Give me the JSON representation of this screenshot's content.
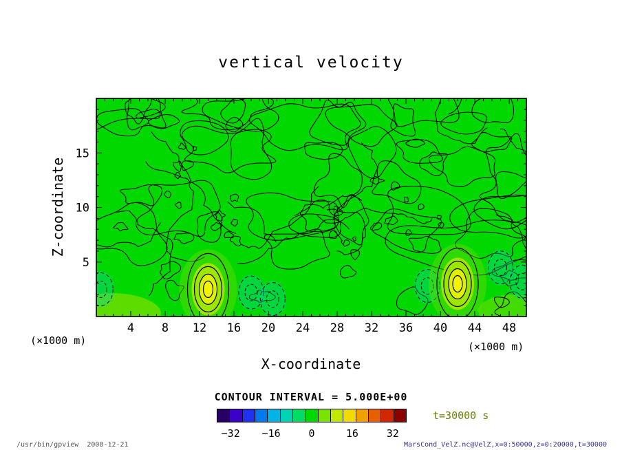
{
  "page": {
    "footer_left": "/usr/bin/gpview  2008-12-21",
    "footer_left_color": "#555555",
    "footer_right": "MarsCond_VelZ.nc@VelZ,x=0:50000,z=0:20000,t=30000",
    "footer_right_color": "#333388"
  },
  "chart_data": {
    "type": "contour",
    "title": "vertical velocity",
    "xlabel": "X-coordinate",
    "ylabel": "Z-coordinate",
    "unit_label_left": "(×1000 m)",
    "unit_label_right": "(×1000 m)",
    "xlim": [
      0,
      50
    ],
    "ylim": [
      0,
      20
    ],
    "x_ticks": [
      4,
      8,
      12,
      16,
      20,
      24,
      28,
      32,
      36,
      40,
      44,
      48
    ],
    "y_ticks": [
      5,
      10,
      15
    ],
    "contour_interval": 5,
    "contour_interval_label": "CONTOUR INTERVAL = 5.000E+00",
    "time_label": "t=30000 s",
    "time_label_color": "#6b8000",
    "field": {
      "fill_color": "#00d800",
      "hotspot_color": "#f4f400",
      "description": "mostly near-zero vertical velocity (uniform green) with dense wiggly +/-5 contour noise; two strong updraft maxima near the bottom boundary",
      "hotspots": [
        {
          "x": 13,
          "z": 2.5
        },
        {
          "x": 42,
          "z": 3
        }
      ],
      "negative_regions": [
        {
          "x": 18,
          "z": 2.2
        },
        {
          "x": 20.5,
          "z": 1.6
        },
        {
          "x": 38.5,
          "z": 2.8
        },
        {
          "x": 0.5,
          "z": 2.5
        },
        {
          "x": 49.5,
          "z": 3.2
        },
        {
          "x": 47,
          "z": 4.5
        }
      ]
    },
    "colorbar": {
      "min": -37.5,
      "max": 37.5,
      "tick_values": [
        -32,
        -16,
        0,
        16,
        32
      ],
      "tick_labels": [
        "−32",
        "−16",
        "0",
        "16",
        "32"
      ],
      "colors": [
        "#280064",
        "#3c00c8",
        "#1e32f0",
        "#0078f0",
        "#00b4e8",
        "#00d4b4",
        "#00dc64",
        "#00d800",
        "#78e400",
        "#c0e800",
        "#f0dc00",
        "#f0a000",
        "#e66000",
        "#d22800",
        "#8c0000"
      ]
    }
  }
}
